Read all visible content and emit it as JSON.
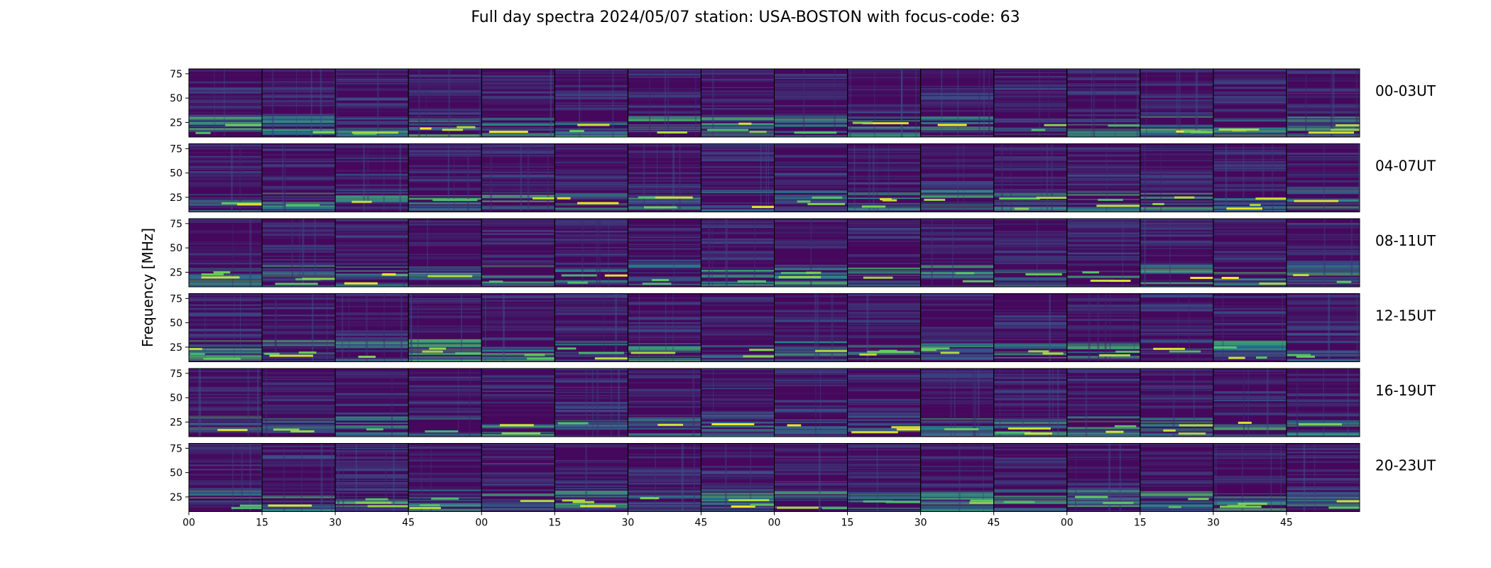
{
  "chart_data": {
    "type": "heatmap",
    "title": "Full day spectra 2024/05/07 station: USA-BOSTON with focus-code: 63",
    "xlabel": "",
    "ylabel": "Frequency [MHz]",
    "colormap": "viridis",
    "rows": [
      "00-03UT",
      "04-07UT",
      "08-11UT",
      "12-15UT",
      "16-19UT",
      "20-23UT"
    ],
    "panels_per_row": 16,
    "ylim": [
      10,
      80
    ],
    "yticks": [
      25,
      50,
      75
    ],
    "ytick_labels": [
      "25",
      "50",
      "75"
    ],
    "xticks": [
      0,
      15,
      30,
      45,
      60,
      75,
      90,
      105,
      120,
      135,
      150,
      165,
      180,
      195,
      210,
      225
    ],
    "xtick_labels": [
      "00",
      "15",
      "30",
      "45",
      "00",
      "15",
      "30",
      "45",
      "00",
      "15",
      "30",
      "45",
      "00",
      "15",
      "30",
      "45"
    ],
    "xlim": [
      0,
      240
    ],
    "colors": {
      "background": "#46085c",
      "low": "#440154",
      "mid": "#21918c",
      "high": "#fde725"
    }
  }
}
